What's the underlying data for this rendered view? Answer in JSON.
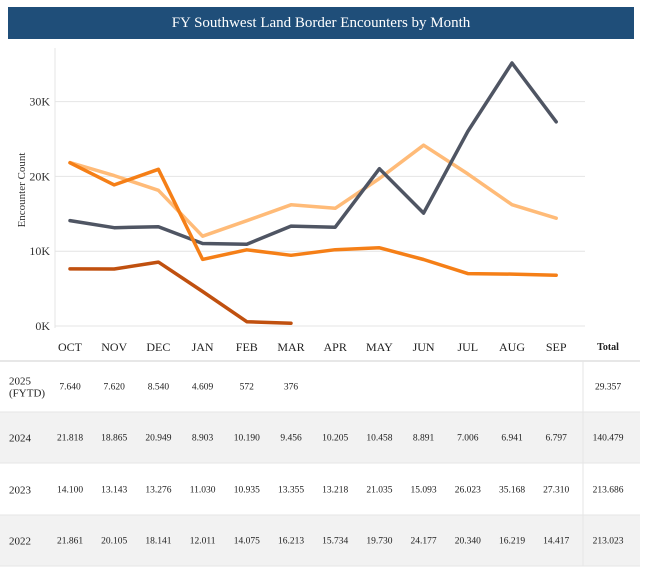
{
  "title": "FY Southwest Land Border Encounters by Month",
  "colors": {
    "title_bg": "#1f4e79",
    "title_text": "#ffffff",
    "grid": "#e4e4e4",
    "row_shade": "#f2f2f2",
    "divider": "#cfcfcf"
  },
  "chart_data": {
    "type": "line",
    "title": "FY Southwest Land Border Encounters by Month",
    "xlabel": "",
    "ylabel": "Encounter Count",
    "ylim": [
      0,
      36000
    ],
    "yticks": [
      0,
      10000,
      20000,
      30000
    ],
    "ytick_labels": [
      "0K",
      "10K",
      "20K",
      "30K"
    ],
    "grid": true,
    "categories": [
      "OCT",
      "NOV",
      "DEC",
      "JAN",
      "FEB",
      "MAR",
      "APR",
      "MAY",
      "JUN",
      "JUL",
      "AUG",
      "SEP"
    ],
    "total_label": "Total",
    "series": [
      {
        "name": "2025\n(FYTD)",
        "color": "#c0500f",
        "values": [
          7640,
          7620,
          8540,
          4609,
          572,
          376,
          null,
          null,
          null,
          null,
          null,
          null
        ],
        "labels": [
          "7.640",
          "7.620",
          "8.540",
          "4.609",
          "572",
          "376",
          "",
          "",
          "",
          "",
          "",
          ""
        ],
        "total": "29.357"
      },
      {
        "name": "2024",
        "color": "#f57f17",
        "values": [
          21818,
          18865,
          20949,
          8903,
          10190,
          9456,
          10205,
          10458,
          8891,
          7006,
          6941,
          6797
        ],
        "labels": [
          "21.818",
          "18.865",
          "20.949",
          "8.903",
          "10.190",
          "9.456",
          "10.205",
          "10.458",
          "8.891",
          "7.006",
          "6.941",
          "6.797"
        ],
        "total": "140.479"
      },
      {
        "name": "2023",
        "color": "#4f5563",
        "values": [
          14100,
          13143,
          13276,
          11030,
          10935,
          13355,
          13218,
          21035,
          15093,
          26023,
          35168,
          27310
        ],
        "labels": [
          "14.100",
          "13.143",
          "13.276",
          "11.030",
          "10.935",
          "13.355",
          "13.218",
          "21.035",
          "15.093",
          "26.023",
          "35.168",
          "27.310"
        ],
        "total": "213.686"
      },
      {
        "name": "2022",
        "color": "#ffbb78",
        "values": [
          21861,
          20105,
          18141,
          12011,
          14075,
          16213,
          15734,
          19730,
          24177,
          20340,
          16219,
          14417
        ],
        "labels": [
          "21.861",
          "20.105",
          "18.141",
          "12.011",
          "14.075",
          "16.213",
          "15.734",
          "19.730",
          "24.177",
          "20.340",
          "16.219",
          "14.417"
        ],
        "total": "213.023"
      }
    ]
  }
}
